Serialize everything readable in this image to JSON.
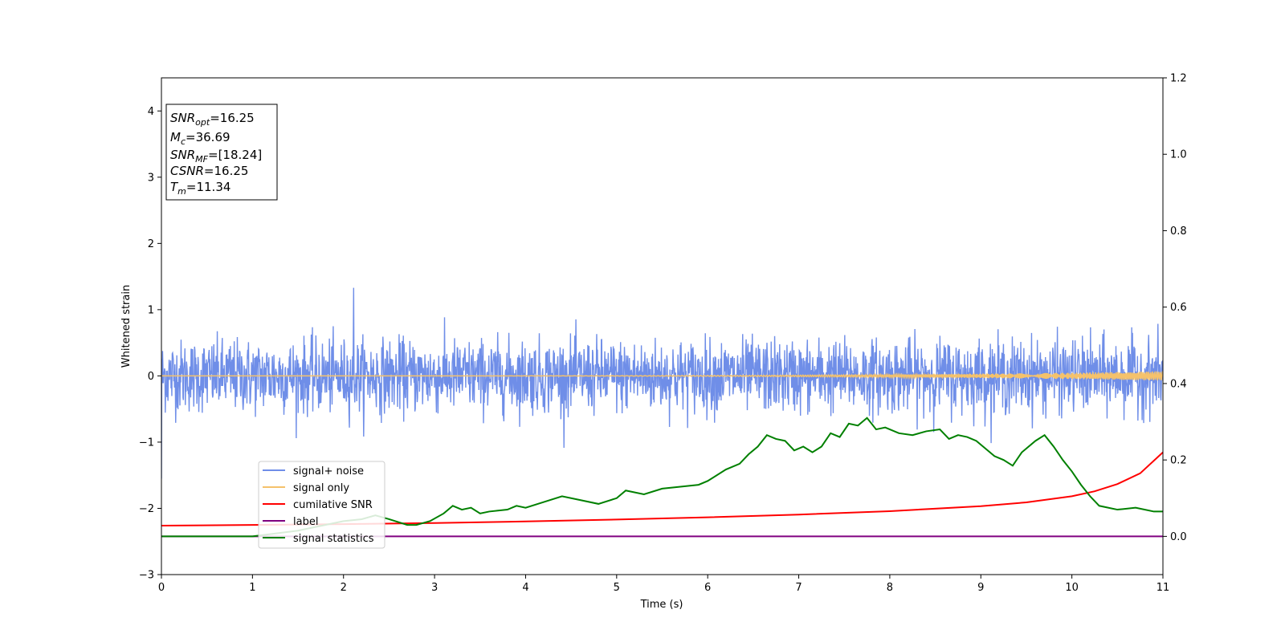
{
  "chart_data": {
    "type": "line",
    "xlabel": "Time (s)",
    "ylabel": "Whitened strain",
    "xlim": [
      0,
      11
    ],
    "ylim_left": [
      -3,
      4.5
    ],
    "ylim_right": [
      -0.1,
      1.2
    ],
    "x_ticks": [
      0,
      1,
      2,
      3,
      4,
      5,
      6,
      7,
      8,
      9,
      10,
      11
    ],
    "y_ticks_left": [
      -3,
      -2,
      -1,
      0,
      1,
      2,
      3,
      4
    ],
    "y_ticks_right": [
      "0.0",
      "0.2",
      "0.4",
      "0.6",
      "0.8",
      "1.0",
      "1.2"
    ],
    "grid": false,
    "legend_position": "lower-left",
    "info_box": [
      {
        "name": "SNR",
        "sub": "opt",
        "value": "=16.25"
      },
      {
        "name": "M",
        "sub": "c",
        "value": "=36.69"
      },
      {
        "name": "SNR",
        "sub": "MF",
        "value": "=[18.24]"
      },
      {
        "name": "CSNR",
        "sub": "",
        "value": "=16.25"
      },
      {
        "name": "T",
        "sub": "m",
        "value": "=11.34"
      }
    ],
    "series": [
      {
        "name": "signal+ noise",
        "color": "#6f8ee8",
        "axis": "left",
        "noise_amplitude_std": 0.27,
        "peak_max": 1.33,
        "peak_max_x": 2.11,
        "peak_min": -1.16
      },
      {
        "name": "signal only",
        "color": "#f5c26b",
        "axis": "left",
        "chirp_amplitude_end": 0.07
      },
      {
        "name": "cumilative SNR",
        "color": "#ff0000",
        "axis": "right",
        "x": [
          0,
          1,
          2,
          3,
          4,
          5,
          6,
          7,
          8,
          9,
          9.5,
          10,
          10.25,
          10.5,
          10.75,
          11
        ],
        "y": [
          0.028,
          0.03,
          0.032,
          0.035,
          0.039,
          0.044,
          0.05,
          0.057,
          0.066,
          0.079,
          0.089,
          0.105,
          0.118,
          0.137,
          0.165,
          0.22
        ]
      },
      {
        "name": "label",
        "color": "#800080",
        "axis": "right",
        "x": [
          0,
          11
        ],
        "y": [
          0,
          0
        ]
      },
      {
        "name": "signal statistics",
        "color": "#008000",
        "axis": "right",
        "x": [
          0,
          1.0,
          1.5,
          1.8,
          2.0,
          2.2,
          2.35,
          2.5,
          2.7,
          2.8,
          2.95,
          3.1,
          3.2,
          3.3,
          3.4,
          3.5,
          3.6,
          3.8,
          3.9,
          4.0,
          4.2,
          4.4,
          4.6,
          4.8,
          5.0,
          5.1,
          5.3,
          5.5,
          5.7,
          5.9,
          6.0,
          6.2,
          6.35,
          6.45,
          6.55,
          6.65,
          6.75,
          6.85,
          6.95,
          7.05,
          7.15,
          7.25,
          7.35,
          7.45,
          7.55,
          7.65,
          7.75,
          7.85,
          7.95,
          8.1,
          8.25,
          8.4,
          8.55,
          8.65,
          8.75,
          8.85,
          8.95,
          9.05,
          9.15,
          9.25,
          9.35,
          9.45,
          9.6,
          9.7,
          9.8,
          9.9,
          10.0,
          10.1,
          10.2,
          10.3,
          10.5,
          10.7,
          10.9,
          11.0
        ],
        "y": [
          0.0,
          0.0,
          0.015,
          0.03,
          0.04,
          0.045,
          0.055,
          0.045,
          0.03,
          0.03,
          0.04,
          0.06,
          0.08,
          0.07,
          0.075,
          0.06,
          0.065,
          0.07,
          0.08,
          0.075,
          0.09,
          0.105,
          0.095,
          0.085,
          0.1,
          0.12,
          0.11,
          0.125,
          0.13,
          0.135,
          0.145,
          0.175,
          0.19,
          0.215,
          0.235,
          0.265,
          0.255,
          0.25,
          0.225,
          0.235,
          0.22,
          0.235,
          0.27,
          0.26,
          0.295,
          0.29,
          0.31,
          0.28,
          0.285,
          0.27,
          0.265,
          0.275,
          0.28,
          0.255,
          0.265,
          0.26,
          0.25,
          0.23,
          0.21,
          0.2,
          0.185,
          0.22,
          0.25,
          0.265,
          0.235,
          0.2,
          0.17,
          0.135,
          0.105,
          0.08,
          0.07,
          0.075,
          0.065,
          0.065
        ]
      }
    ]
  }
}
